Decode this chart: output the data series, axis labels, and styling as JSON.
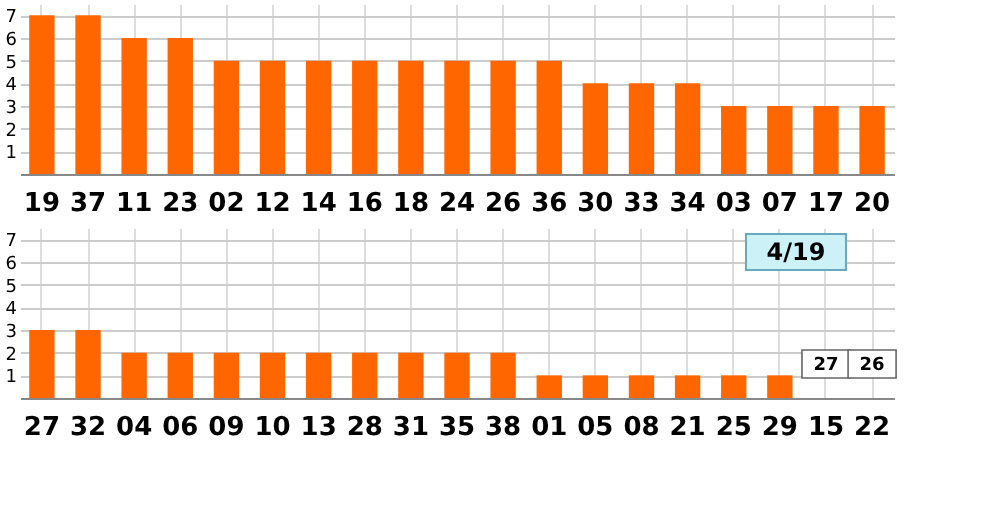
{
  "chart_data": [
    {
      "type": "bar",
      "categories": [
        "19",
        "37",
        "11",
        "23",
        "02",
        "12",
        "14",
        "16",
        "18",
        "24",
        "26",
        "36",
        "30",
        "33",
        "34",
        "03",
        "07",
        "17",
        "20"
      ],
      "values": [
        7,
        7,
        6,
        6,
        5,
        5,
        5,
        5,
        5,
        5,
        5,
        5,
        4,
        4,
        4,
        3,
        3,
        3,
        3
      ],
      "colors": [
        "#ff6600",
        "#ff6600",
        "#ff6600",
        "#ff6600",
        "#ff6600",
        "#ff6600",
        "#ff6600",
        "#ff6600",
        "#ff6600",
        "#ff6600",
        "#ff6600",
        "#ff6600",
        "#ff6600",
        "#ff6600",
        "#ff6600",
        "#ff6600",
        "#ff6600",
        "#ff6600",
        "#ff6600"
      ],
      "ylim": [
        0,
        7.5
      ],
      "yticks": [
        1,
        2,
        3,
        4,
        5,
        6,
        7
      ],
      "grid": true
    },
    {
      "type": "bar",
      "categories": [
        "27",
        "32",
        "04",
        "06",
        "09",
        "10",
        "13",
        "28",
        "31",
        "35",
        "38",
        "01",
        "05",
        "08",
        "21",
        "25",
        "29",
        "15",
        "22"
      ],
      "values": [
        3,
        3,
        2,
        2,
        2,
        2,
        2,
        2,
        2,
        2,
        2,
        1,
        1,
        1,
        1,
        1,
        1,
        null,
        null
      ],
      "colors": [
        "#ff6600",
        "#ff6600",
        "#ff6600",
        "#ff6600",
        "#ff6600",
        "#ff6600",
        "#ff6600",
        "#ff6600",
        "#ff6600",
        "#ff6600",
        "#ff6600",
        "#ff6600",
        "#ff6600",
        "#ff6600",
        "#ff6600",
        "#ff6600",
        "#ff6600",
        "#ff6600",
        "#ff6600"
      ],
      "ylim": [
        0,
        7.5
      ],
      "yticks": [
        1,
        2,
        3,
        4,
        5,
        6,
        7
      ],
      "grid": true,
      "annotations": [
        "4/19",
        {
          "text": "27",
          "x": "15",
          "y": 1.5
        },
        {
          "text": "26",
          "x": "22",
          "y": 1.5
        }
      ]
    }
  ]
}
